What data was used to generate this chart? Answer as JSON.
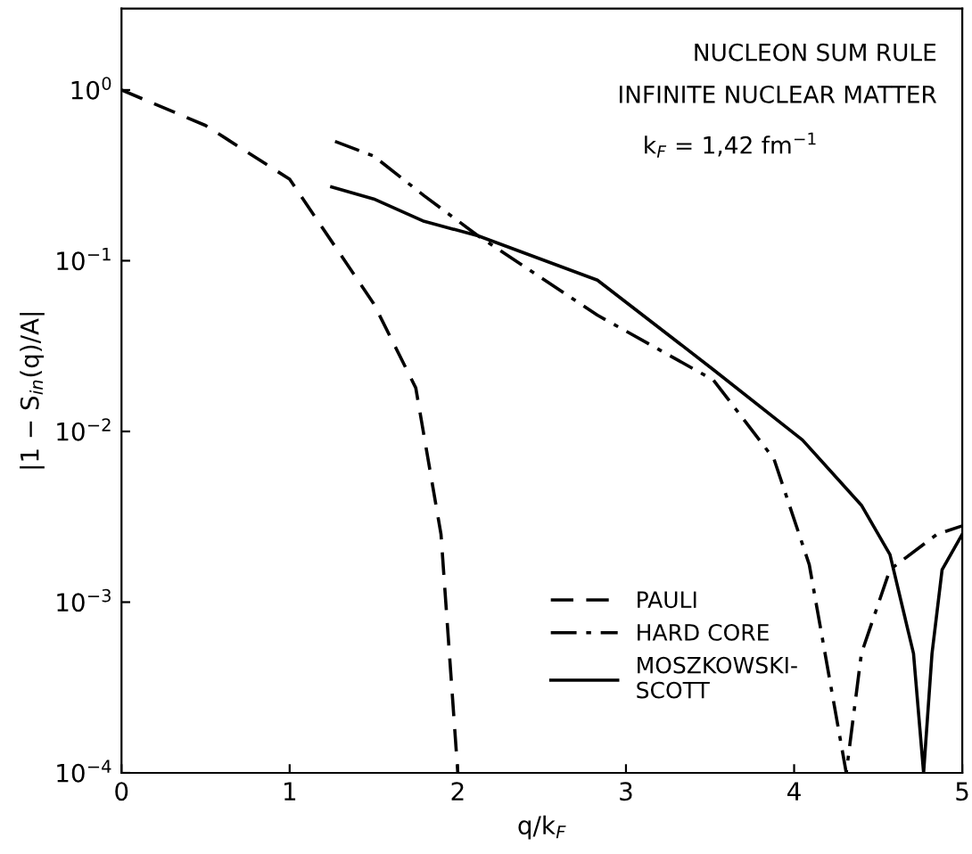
{
  "chart_data": {
    "type": "line",
    "xlabel": "q/k$_{F}$",
    "ylabel": "|1 − S$_{in}$(q)/A|",
    "log": "y",
    "xlim": [
      0,
      5
    ],
    "ylim": [
      0.0001,
      3
    ],
    "xticks": [
      0,
      1,
      2,
      3,
      4,
      5
    ],
    "yticks": [
      {
        "value": 1,
        "label": "10$^{0}$"
      },
      {
        "value": 0.1,
        "label": "10$^{−1}$"
      },
      {
        "value": 0.01,
        "label": "10$^{−2}$"
      },
      {
        "value": 0.001,
        "label": "10$^{−3}$"
      },
      {
        "value": 0.0001,
        "label": "10$^{−4}$"
      }
    ],
    "grid": false,
    "legend": "bottom right",
    "marker": "none",
    "annotations": [
      "NUCLEON SUM RULE",
      "INFINITE NUCLEAR MATTER",
      "k$_{F}$ = 1,42 fm$^{−1}$"
    ],
    "series": [
      {
        "name": "PAULI",
        "color": "#000000",
        "line_style": "dashed",
        "x": [
          0,
          0.5,
          1,
          1.5,
          1.75,
          1.9,
          2.0
        ],
        "values": [
          1.0,
          0.62,
          0.3,
          0.056,
          0.018,
          0.0025,
          0.0001
        ]
      },
      {
        "name": "HARD CORE",
        "color": "#000000",
        "line_style": "dashdot",
        "x": [
          1.27,
          1.5,
          1.8,
          2.12,
          2.83,
          3.52,
          3.88,
          4.09,
          4.31,
          4.4,
          4.57,
          4.85,
          5.0
        ],
        "values": [
          0.5,
          0.41,
          0.24,
          0.14,
          0.048,
          0.02,
          0.0069,
          0.00166,
          0.0001,
          0.0005,
          0.00155,
          0.0025,
          0.0028
        ]
      },
      {
        "name": "MOSZKOWSKI-\nSCOTT",
        "color": "#000000",
        "line_style": "solid",
        "x": [
          1.25,
          1.5,
          1.8,
          2.12,
          2.83,
          3.52,
          4.05,
          4.4,
          4.57,
          4.71,
          4.77,
          4.82,
          4.88,
          5.0
        ],
        "values": [
          0.27,
          0.23,
          0.17,
          0.14,
          0.077,
          0.023,
          0.0089,
          0.0037,
          0.0019,
          0.0005,
          0.0001,
          0.0005,
          0.00155,
          0.0025
        ]
      }
    ]
  }
}
